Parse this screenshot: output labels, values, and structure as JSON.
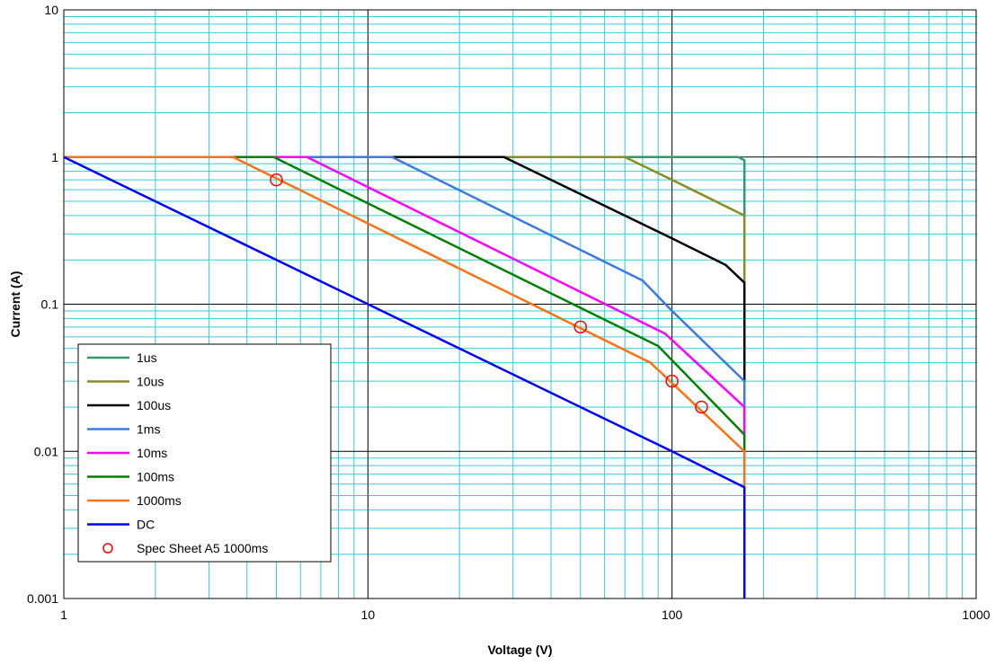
{
  "chart_data": {
    "type": "line",
    "xlabel": "Voltage (V)",
    "ylabel": "Current (A)",
    "x_scale": "log",
    "y_scale": "log",
    "xlim": [
      1,
      1000
    ],
    "ylim": [
      0.001,
      10
    ],
    "x_ticks": [
      {
        "value": 1,
        "label": "1"
      },
      {
        "value": 10,
        "label": "10"
      },
      {
        "value": 100,
        "label": "100"
      },
      {
        "value": 1000,
        "label": "1000"
      }
    ],
    "y_ticks": [
      {
        "value": 10,
        "label": "10"
      },
      {
        "value": 1,
        "label": "1"
      },
      {
        "value": 0.1,
        "label": "0.1"
      },
      {
        "value": 0.01,
        "label": "0.01"
      },
      {
        "value": 0.001,
        "label": "0.001"
      }
    ],
    "grid": {
      "major": true,
      "minor": true,
      "major_color": "#000000",
      "minor_color": "#33ccdd"
    },
    "legend_position": "bottom-left",
    "series": [
      {
        "name": "1us",
        "color": "#2e9b6e",
        "points": [
          [
            1,
            1
          ],
          [
            165,
            1
          ],
          [
            173,
            0.95
          ],
          [
            173,
            0.4
          ]
        ]
      },
      {
        "name": "10us",
        "color": "#8c8c1e",
        "points": [
          [
            1,
            1
          ],
          [
            70,
            1
          ],
          [
            100,
            0.7
          ],
          [
            173,
            0.4
          ],
          [
            173,
            0.14
          ]
        ]
      },
      {
        "name": "100us",
        "color": "#000000",
        "points": [
          [
            1,
            1
          ],
          [
            28,
            1
          ],
          [
            100,
            0.28
          ],
          [
            150,
            0.185
          ],
          [
            173,
            0.14
          ],
          [
            173,
            0.03
          ]
        ]
      },
      {
        "name": "1ms",
        "color": "#3c78e6",
        "points": [
          [
            1,
            1
          ],
          [
            12,
            1
          ],
          [
            80,
            0.145
          ],
          [
            100,
            0.09
          ],
          [
            173,
            0.03
          ],
          [
            173,
            0.02
          ]
        ]
      },
      {
        "name": "10ms",
        "color": "#ff00ff",
        "points": [
          [
            1,
            1
          ],
          [
            6.3,
            1
          ],
          [
            95,
            0.063
          ],
          [
            173,
            0.02
          ],
          [
            173,
            0.013
          ]
        ]
      },
      {
        "name": "100ms",
        "color": "#008000",
        "points": [
          [
            1,
            1
          ],
          [
            4.9,
            1
          ],
          [
            90,
            0.052
          ],
          [
            173,
            0.013
          ],
          [
            173,
            0.01
          ]
        ]
      },
      {
        "name": "1000ms",
        "color": "#ff7010",
        "points": [
          [
            1,
            1
          ],
          [
            3.6,
            1
          ],
          [
            85,
            0.04
          ],
          [
            173,
            0.01
          ],
          [
            173,
            0.0057
          ]
        ]
      },
      {
        "name": "DC",
        "color": "#0000ff",
        "points": [
          [
            1,
            1
          ],
          [
            100,
            0.01
          ],
          [
            173,
            0.0057
          ],
          [
            173,
            0.001
          ]
        ]
      }
    ],
    "markers": {
      "name": "Spec Sheet A5 1000ms",
      "color": "#ff0000",
      "points": [
        [
          5,
          0.7
        ],
        [
          50,
          0.07
        ],
        [
          100,
          0.03
        ],
        [
          125,
          0.02
        ]
      ]
    }
  }
}
